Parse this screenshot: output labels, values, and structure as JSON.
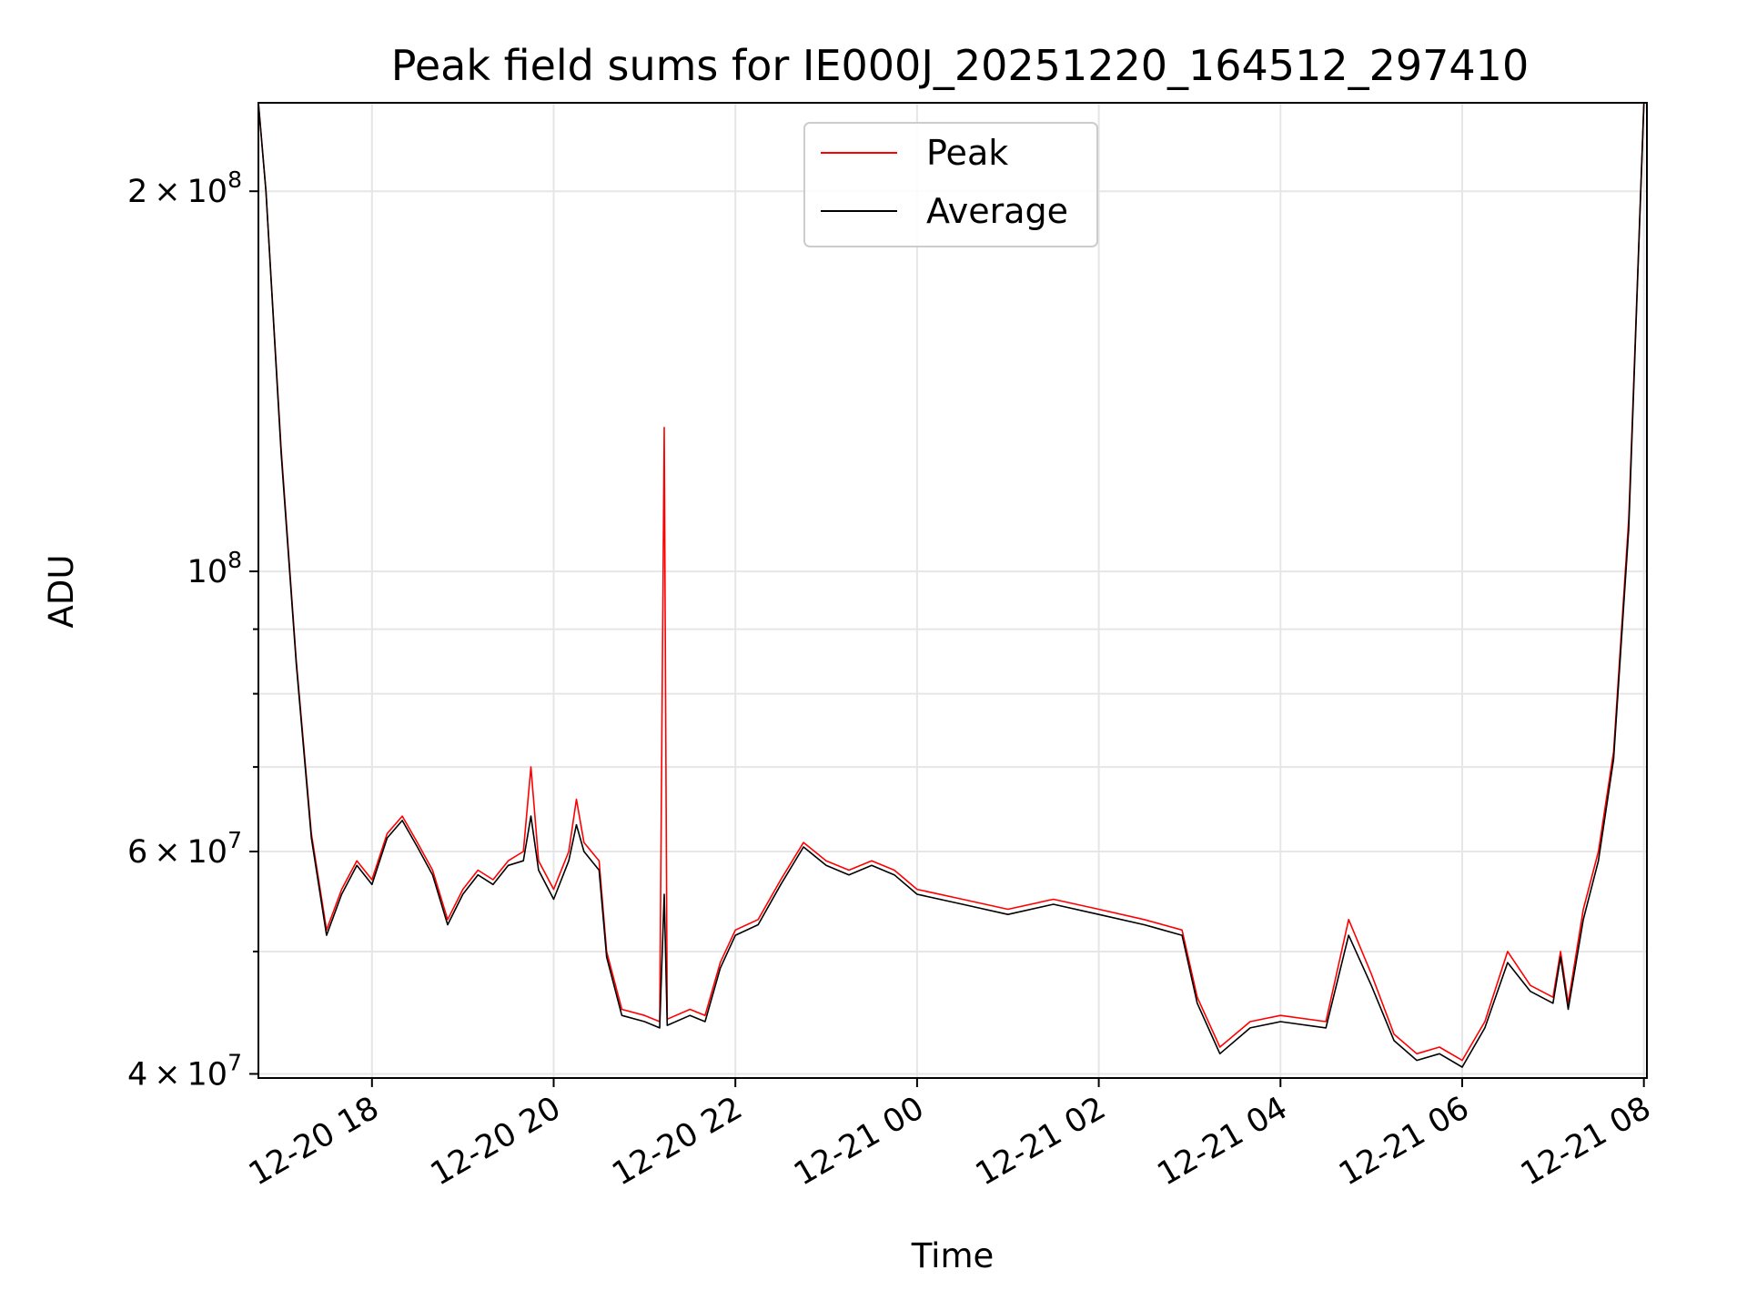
{
  "chart_data": {
    "type": "line",
    "title": "Peak field sums for IE000J_20251220_164512_297410",
    "xlabel": "Time",
    "ylabel": "ADU",
    "y_scale": "log",
    "ylim": [
      39700000,
      235000000
    ],
    "xlim": [
      "2025-12-20 16:45",
      "2025-12-21 08:02"
    ],
    "grid": true,
    "legend": {
      "position": "upper-center",
      "entries": [
        "Peak",
        "Average"
      ]
    },
    "x_ticks": [
      {
        "t": "2025-12-20 18:00",
        "label": "12-20 18"
      },
      {
        "t": "2025-12-20 20:00",
        "label": "12-20 20"
      },
      {
        "t": "2025-12-20 22:00",
        "label": "12-20 22"
      },
      {
        "t": "2025-12-21 00:00",
        "label": "12-21 00"
      },
      {
        "t": "2025-12-21 02:00",
        "label": "12-21 02"
      },
      {
        "t": "2025-12-21 04:00",
        "label": "12-21 04"
      },
      {
        "t": "2025-12-21 06:00",
        "label": "12-21 06"
      },
      {
        "t": "2025-12-21 08:00",
        "label": "12-21 08"
      }
    ],
    "y_major_ticks": [
      {
        "value": 40000000,
        "base": "4",
        "exp": "7"
      },
      {
        "value": 60000000,
        "base": "6",
        "exp": "7"
      },
      {
        "value": 100000000,
        "base": "",
        "exp": "8"
      },
      {
        "value": 200000000,
        "base": "2",
        "exp": "8"
      }
    ],
    "y_minor_ticks": [
      50000000,
      70000000,
      80000000,
      90000000
    ],
    "series": [
      {
        "name": "Peak",
        "color": "#ff0000",
        "x": [
          "2025-12-20 16:45",
          "2025-12-20 16:50",
          "2025-12-20 17:00",
          "2025-12-20 17:10",
          "2025-12-20 17:20",
          "2025-12-20 17:30",
          "2025-12-20 17:40",
          "2025-12-20 17:50",
          "2025-12-20 18:00",
          "2025-12-20 18:10",
          "2025-12-20 18:20",
          "2025-12-20 18:30",
          "2025-12-20 18:40",
          "2025-12-20 18:50",
          "2025-12-20 19:00",
          "2025-12-20 19:10",
          "2025-12-20 19:20",
          "2025-12-20 19:30",
          "2025-12-20 19:40",
          "2025-12-20 19:45",
          "2025-12-20 19:50",
          "2025-12-20 20:00",
          "2025-12-20 20:10",
          "2025-12-20 20:15",
          "2025-12-20 20:20",
          "2025-12-20 20:30",
          "2025-12-20 20:35",
          "2025-12-20 20:45",
          "2025-12-20 21:00",
          "2025-12-20 21:10",
          "2025-12-20 21:13",
          "2025-12-20 21:15",
          "2025-12-20 21:30",
          "2025-12-20 21:40",
          "2025-12-20 21:50",
          "2025-12-20 22:00",
          "2025-12-20 22:15",
          "2025-12-20 22:30",
          "2025-12-20 22:45",
          "2025-12-20 23:00",
          "2025-12-20 23:15",
          "2025-12-20 23:30",
          "2025-12-20 23:45",
          "2025-12-21 00:00",
          "2025-12-21 00:30",
          "2025-12-21 01:00",
          "2025-12-21 01:30",
          "2025-12-21 02:00",
          "2025-12-21 02:30",
          "2025-12-21 02:55",
          "2025-12-21 03:05",
          "2025-12-21 03:20",
          "2025-12-21 03:40",
          "2025-12-21 04:00",
          "2025-12-21 04:30",
          "2025-12-21 04:45",
          "2025-12-21 05:00",
          "2025-12-21 05:15",
          "2025-12-21 05:30",
          "2025-12-21 05:45",
          "2025-12-21 06:00",
          "2025-12-21 06:15",
          "2025-12-21 06:30",
          "2025-12-21 06:45",
          "2025-12-21 07:00",
          "2025-12-21 07:05",
          "2025-12-21 07:10",
          "2025-12-21 07:20",
          "2025-12-21 07:30",
          "2025-12-21 07:40",
          "2025-12-21 07:50",
          "2025-12-21 08:00"
        ],
        "y": [
          235000000,
          200000000,
          125000000,
          85000000,
          62000000,
          52000000,
          56000000,
          59000000,
          57000000,
          62000000,
          64000000,
          61000000,
          58000000,
          53000000,
          56000000,
          58000000,
          57000000,
          59000000,
          60000000,
          70000000,
          59000000,
          56000000,
          60000000,
          66000000,
          61000000,
          59000000,
          50000000,
          45000000,
          44500000,
          44000000,
          130000000,
          44200000,
          45000000,
          44500000,
          49000000,
          52000000,
          53000000,
          57000000,
          61000000,
          59000000,
          58000000,
          59000000,
          58000000,
          56000000,
          55000000,
          54000000,
          55000000,
          54000000,
          53000000,
          52000000,
          46000000,
          42000000,
          44000000,
          44500000,
          44000000,
          53000000,
          48000000,
          43000000,
          41500000,
          42000000,
          41000000,
          44000000,
          50000000,
          47000000,
          46000000,
          50000000,
          45500000,
          54000000,
          60000000,
          72000000,
          110000000,
          235000000
        ]
      },
      {
        "name": "Average",
        "color": "#000000",
        "x": [
          "2025-12-20 16:45",
          "2025-12-20 16:50",
          "2025-12-20 17:00",
          "2025-12-20 17:10",
          "2025-12-20 17:20",
          "2025-12-20 17:30",
          "2025-12-20 17:40",
          "2025-12-20 17:50",
          "2025-12-20 18:00",
          "2025-12-20 18:10",
          "2025-12-20 18:20",
          "2025-12-20 18:30",
          "2025-12-20 18:40",
          "2025-12-20 18:50",
          "2025-12-20 19:00",
          "2025-12-20 19:10",
          "2025-12-20 19:20",
          "2025-12-20 19:30",
          "2025-12-20 19:40",
          "2025-12-20 19:45",
          "2025-12-20 19:50",
          "2025-12-20 20:00",
          "2025-12-20 20:10",
          "2025-12-20 20:15",
          "2025-12-20 20:20",
          "2025-12-20 20:30",
          "2025-12-20 20:35",
          "2025-12-20 20:45",
          "2025-12-20 21:00",
          "2025-12-20 21:10",
          "2025-12-20 21:13",
          "2025-12-20 21:15",
          "2025-12-20 21:30",
          "2025-12-20 21:40",
          "2025-12-20 21:50",
          "2025-12-20 22:00",
          "2025-12-20 22:15",
          "2025-12-20 22:30",
          "2025-12-20 22:45",
          "2025-12-20 23:00",
          "2025-12-20 23:15",
          "2025-12-20 23:30",
          "2025-12-20 23:45",
          "2025-12-21 00:00",
          "2025-12-21 00:30",
          "2025-12-21 01:00",
          "2025-12-21 01:30",
          "2025-12-21 02:00",
          "2025-12-21 02:30",
          "2025-12-21 02:55",
          "2025-12-21 03:05",
          "2025-12-21 03:20",
          "2025-12-21 03:40",
          "2025-12-21 04:00",
          "2025-12-21 04:30",
          "2025-12-21 04:45",
          "2025-12-21 05:00",
          "2025-12-21 05:15",
          "2025-12-21 05:30",
          "2025-12-21 05:45",
          "2025-12-21 06:00",
          "2025-12-21 06:15",
          "2025-12-21 06:30",
          "2025-12-21 06:45",
          "2025-12-21 07:00",
          "2025-12-21 07:05",
          "2025-12-21 07:10",
          "2025-12-21 07:20",
          "2025-12-21 07:30",
          "2025-12-21 07:40",
          "2025-12-21 07:50",
          "2025-12-21 08:00"
        ],
        "y": [
          235000000,
          200000000,
          124000000,
          84500000,
          61500000,
          51500000,
          55500000,
          58500000,
          56500000,
          61500000,
          63500000,
          60500000,
          57500000,
          52500000,
          55500000,
          57500000,
          56500000,
          58500000,
          59000000,
          64000000,
          58000000,
          55000000,
          59000000,
          63000000,
          60000000,
          58000000,
          49500000,
          44500000,
          44000000,
          43500000,
          55500000,
          43700000,
          44500000,
          44000000,
          48500000,
          51500000,
          52500000,
          56500000,
          60500000,
          58500000,
          57500000,
          58500000,
          57500000,
          55500000,
          54500000,
          53500000,
          54500000,
          53500000,
          52500000,
          51500000,
          45500000,
          41500000,
          43500000,
          44000000,
          43500000,
          51500000,
          47000000,
          42500000,
          41000000,
          41500000,
          40500000,
          43500000,
          49000000,
          46500000,
          45500000,
          49500000,
          45000000,
          53000000,
          59000000,
          71000000,
          108000000,
          235000000
        ]
      }
    ]
  }
}
